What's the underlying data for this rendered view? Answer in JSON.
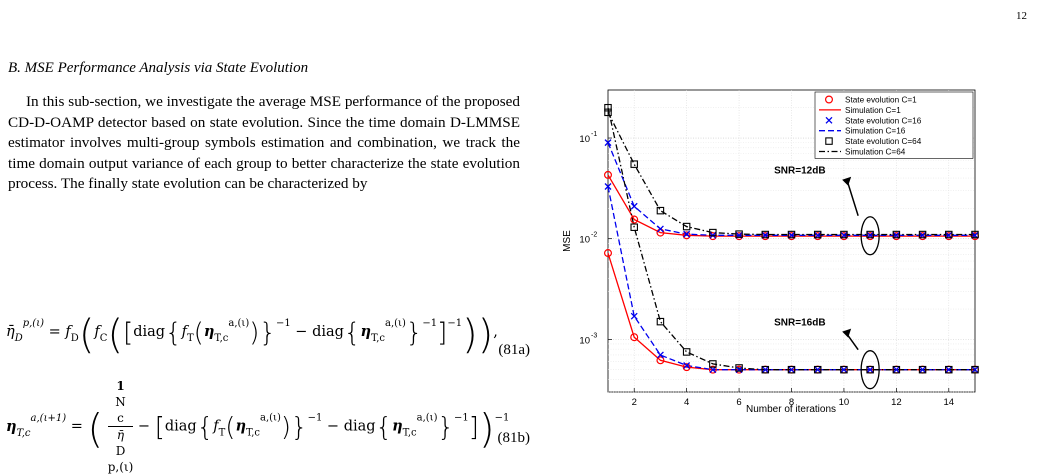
{
  "page_number": "12",
  "section_heading": "B. MSE Performance Analysis via State Evolution",
  "body_text": "In this sub-section, we investigate the average MSE performance of the proposed CD-D-OAMP detector based on state evolution. Since the time domain D-LMMSE estimator involves multi-group symbols estimation and combination, we track the time domain output variance of each group to better characterize the state evolution process. The finally state evolution can be characterized by",
  "equations": {
    "eq81a": {
      "lhs": "η̄",
      "lhs_sub": "D",
      "lhs_sup": "p,(ι)",
      "f_D": "f",
      "f_D_sub": "D",
      "f_C": "f",
      "f_C_sub": "C",
      "diag": "diag",
      "f_T": "f",
      "f_T_sub": "T",
      "eta": "η",
      "eta_sub": "T,c",
      "eta_sup": "a,(ι)",
      "minus_one": "−1",
      "tag": "(81a)"
    },
    "eq81b": {
      "lhs": "η",
      "lhs_sub": "T,c",
      "lhs_sup": "a,(ι+1)",
      "num": "1",
      "num_sub": "N",
      "num_subsub": "c",
      "den": "η̄",
      "den_sub": "D",
      "den_sup": "p,(ι)",
      "diag": "diag",
      "minus_one": "−1",
      "tag": "(81b)"
    }
  },
  "chart_data": {
    "type": "line",
    "ylabel": "MSE",
    "xlabel": "Number of iterations",
    "xlim": [
      1,
      15
    ],
    "ylim": [
      0.0003,
      0.3
    ],
    "y_scale": "log",
    "x_ticks": [
      "2",
      "4",
      "6",
      "8",
      "10",
      "12",
      "14"
    ],
    "y_ticks": [
      {
        "base": "10",
        "exp": "-1",
        "value": 0.1
      },
      {
        "base": "10",
        "exp": "-2",
        "value": 0.01
      },
      {
        "base": "10",
        "exp": "-3",
        "value": 0.001
      }
    ],
    "grid": true,
    "legend_position": "top-right",
    "x": [
      1,
      2,
      3,
      4,
      5,
      6,
      7,
      8,
      9,
      10,
      11,
      12,
      13,
      14,
      15
    ],
    "series": [
      {
        "name": "State evolution C=1",
        "color": "#ff0000",
        "style": "marker-circle",
        "group": "SNR=12dB",
        "values": [
          0.043,
          0.0155,
          0.0115,
          0.0108,
          0.0106,
          0.0106,
          0.0106,
          0.0106,
          0.0106,
          0.0106,
          0.0106,
          0.0106,
          0.0106,
          0.0106,
          0.0106
        ]
      },
      {
        "name": "Simulation C=1",
        "color": "#ff0000",
        "style": "solid",
        "group": "SNR=12dB",
        "values": [
          0.043,
          0.0155,
          0.0115,
          0.0108,
          0.0106,
          0.0106,
          0.0106,
          0.0106,
          0.0106,
          0.0106,
          0.0106,
          0.0106,
          0.0106,
          0.0106,
          0.0106
        ]
      },
      {
        "name": "State evolution C=16",
        "color": "#0000ee",
        "style": "marker-x",
        "group": "SNR=12dB",
        "values": [
          0.09,
          0.021,
          0.0125,
          0.0111,
          0.0108,
          0.0108,
          0.0108,
          0.0108,
          0.0108,
          0.0108,
          0.0108,
          0.0108,
          0.0108,
          0.0108,
          0.0108
        ]
      },
      {
        "name": "Simulation C=16",
        "color": "#0000ee",
        "style": "dashed",
        "group": "SNR=12dB",
        "values": [
          0.09,
          0.021,
          0.0125,
          0.0111,
          0.0108,
          0.0108,
          0.0108,
          0.0108,
          0.0108,
          0.0108,
          0.0108,
          0.0108,
          0.0108,
          0.0108,
          0.0108
        ]
      },
      {
        "name": "State evolution C=64",
        "color": "#000000",
        "style": "marker-square",
        "group": "SNR=12dB",
        "values": [
          0.18,
          0.055,
          0.019,
          0.0132,
          0.0115,
          0.0111,
          0.011,
          0.011,
          0.011,
          0.011,
          0.011,
          0.011,
          0.011,
          0.011,
          0.011
        ]
      },
      {
        "name": "Simulation C=64",
        "color": "#000000",
        "style": "dashdot",
        "group": "SNR=12dB",
        "values": [
          0.18,
          0.055,
          0.019,
          0.0132,
          0.0115,
          0.0111,
          0.011,
          0.011,
          0.011,
          0.011,
          0.011,
          0.011,
          0.011,
          0.011,
          0.011
        ]
      },
      {
        "name": "State evolution C=1",
        "color": "#ff0000",
        "style": "marker-circle",
        "group": "SNR=16dB",
        "values": [
          0.0072,
          0.00105,
          0.00062,
          0.00053,
          0.0005,
          0.0005,
          0.0005,
          0.0005,
          0.0005,
          0.0005,
          0.0005,
          0.0005,
          0.0005,
          0.0005,
          0.0005
        ]
      },
      {
        "name": "Simulation C=1",
        "color": "#ff0000",
        "style": "solid",
        "group": "SNR=16dB",
        "values": [
          0.0072,
          0.00105,
          0.00062,
          0.00053,
          0.0005,
          0.0005,
          0.0005,
          0.0005,
          0.0005,
          0.0005,
          0.0005,
          0.0005,
          0.0005,
          0.0005,
          0.0005
        ]
      },
      {
        "name": "State evolution C=16",
        "color": "#0000ee",
        "style": "marker-x",
        "group": "SNR=16dB",
        "values": [
          0.033,
          0.0017,
          0.0007,
          0.00055,
          0.0005,
          0.0005,
          0.0005,
          0.0005,
          0.0005,
          0.0005,
          0.0005,
          0.0005,
          0.0005,
          0.0005,
          0.0005
        ]
      },
      {
        "name": "Simulation C=16",
        "color": "#0000ee",
        "style": "dashed",
        "group": "SNR=16dB",
        "values": [
          0.033,
          0.0017,
          0.0007,
          0.00055,
          0.0005,
          0.0005,
          0.0005,
          0.0005,
          0.0005,
          0.0005,
          0.0005,
          0.0005,
          0.0005,
          0.0005,
          0.0005
        ]
      },
      {
        "name": "State evolution C=64",
        "color": "#000000",
        "style": "marker-square",
        "group": "SNR=16dB",
        "values": [
          0.2,
          0.013,
          0.0015,
          0.00075,
          0.00057,
          0.00052,
          0.0005,
          0.0005,
          0.0005,
          0.0005,
          0.0005,
          0.0005,
          0.0005,
          0.0005,
          0.0005
        ]
      },
      {
        "name": "Simulation C=64",
        "color": "#000000",
        "style": "dashdot",
        "group": "SNR=16dB",
        "values": [
          0.2,
          0.013,
          0.0015,
          0.00075,
          0.00057,
          0.00052,
          0.0005,
          0.0005,
          0.0005,
          0.0005,
          0.0005,
          0.0005,
          0.0005,
          0.0005,
          0.0005
        ]
      }
    ],
    "legend": [
      {
        "label": "State evolution C=1",
        "color": "#ff0000",
        "style": "marker-circle"
      },
      {
        "label": "Simulation C=1",
        "color": "#ff0000",
        "style": "solid"
      },
      {
        "label": "State evolution C=16",
        "color": "#0000ee",
        "style": "marker-x"
      },
      {
        "label": "Simulation C=16",
        "color": "#0000ee",
        "style": "dashed"
      },
      {
        "label": "State evolution C=64",
        "color": "#000000",
        "style": "marker-square"
      },
      {
        "label": "Simulation C=64",
        "color": "#000000",
        "style": "dashdot"
      }
    ],
    "annotations": [
      {
        "text": "SNR=12dB",
        "ellipse_at": {
          "x": 11,
          "y": 0.0107
        }
      },
      {
        "text": "SNR=16dB",
        "ellipse_at": {
          "x": 11,
          "y": 0.0005
        }
      }
    ]
  }
}
